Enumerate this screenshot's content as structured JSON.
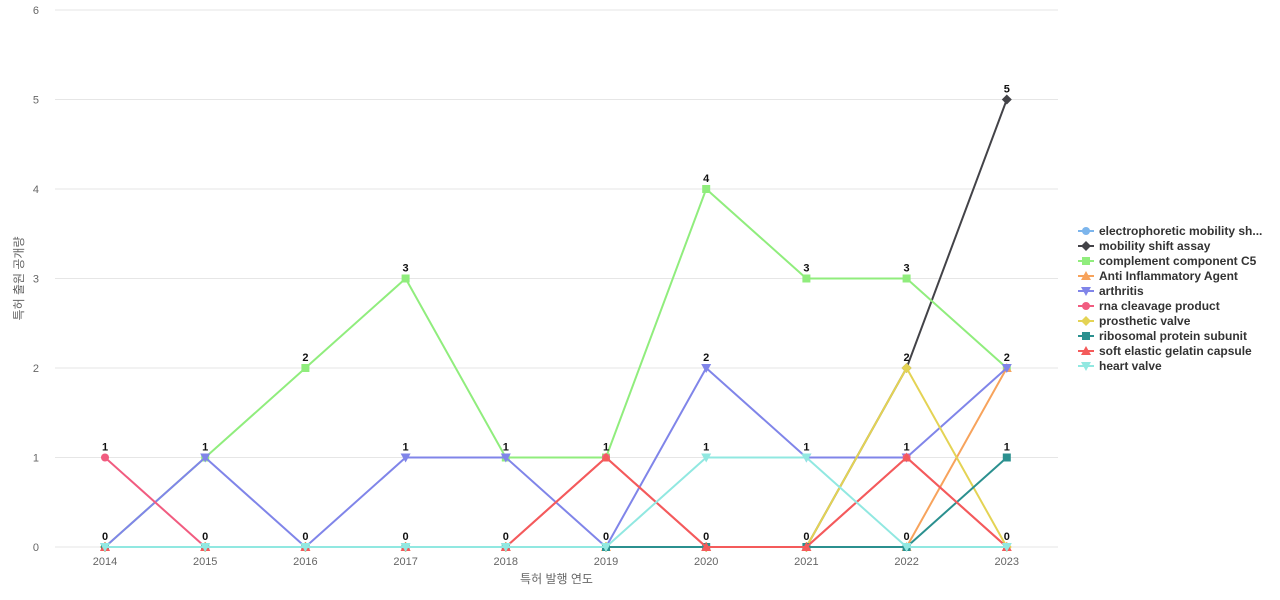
{
  "chart_data": {
    "type": "line",
    "title": "",
    "xlabel": "특허 발행 연도",
    "ylabel": "특허 출원 공개량",
    "categories": [
      "2014",
      "2015",
      "2016",
      "2017",
      "2018",
      "2019",
      "2020",
      "2021",
      "2022",
      "2023"
    ],
    "ylim": [
      0,
      6
    ],
    "yticks": [
      0,
      1,
      2,
      3,
      4,
      5,
      6
    ],
    "grid": true,
    "legend_position": "right",
    "series": [
      {
        "name": "electrophoretic mobility sh...",
        "color": "#7cb5ec",
        "marker": "circle",
        "values": [
          0,
          0,
          0,
          0,
          0,
          0,
          0,
          0,
          0,
          0
        ]
      },
      {
        "name": "mobility shift assay",
        "color": "#434348",
        "marker": "diamond",
        "values": [
          0,
          0,
          0,
          0,
          0,
          0,
          0,
          0,
          2,
          5
        ]
      },
      {
        "name": "complement component C5",
        "color": "#90ed7d",
        "marker": "square",
        "values": [
          0,
          1,
          2,
          3,
          1,
          1,
          4,
          3,
          3,
          2
        ]
      },
      {
        "name": "Anti Inflammatory Agent",
        "color": "#f7a35c",
        "marker": "triangle",
        "values": [
          0,
          0,
          0,
          0,
          0,
          0,
          0,
          0,
          0,
          2
        ]
      },
      {
        "name": "arthritis",
        "color": "#8085e9",
        "marker": "triangle-down",
        "values": [
          0,
          1,
          0,
          1,
          1,
          0,
          2,
          1,
          1,
          2
        ]
      },
      {
        "name": "rna cleavage product",
        "color": "#f15c80",
        "marker": "circle",
        "values": [
          1,
          0,
          0,
          0,
          0,
          1,
          0,
          0,
          1,
          0
        ]
      },
      {
        "name": "prosthetic valve",
        "color": "#e4d354",
        "marker": "diamond",
        "values": [
          0,
          0,
          0,
          0,
          0,
          0,
          0,
          0,
          2,
          0
        ]
      },
      {
        "name": "ribosomal protein subunit",
        "color": "#2b908f",
        "marker": "square",
        "values": [
          0,
          0,
          0,
          0,
          0,
          0,
          0,
          0,
          0,
          1
        ]
      },
      {
        "name": "soft elastic gelatin capsule",
        "color": "#f45b5b",
        "marker": "triangle",
        "values": [
          0,
          0,
          0,
          0,
          0,
          1,
          0,
          0,
          1,
          0
        ]
      },
      {
        "name": "heart valve",
        "color": "#91e8e1",
        "marker": "triangle-down",
        "values": [
          0,
          0,
          0,
          0,
          0,
          0,
          1,
          1,
          0,
          0
        ]
      }
    ],
    "point_labels": [
      {
        "category": "2014",
        "text": "1",
        "value": 1
      },
      {
        "category": "2014",
        "text": "0",
        "value": 0
      },
      {
        "category": "2015",
        "text": "1",
        "value": 1
      },
      {
        "category": "2015",
        "text": "0",
        "value": 0
      },
      {
        "category": "2016",
        "text": "2",
        "value": 2
      },
      {
        "category": "2016",
        "text": "0",
        "value": 0
      },
      {
        "category": "2017",
        "text": "3",
        "value": 3
      },
      {
        "category": "2017",
        "text": "1",
        "value": 1
      },
      {
        "category": "2017",
        "text": "0",
        "value": 0
      },
      {
        "category": "2018",
        "text": "1",
        "value": 1
      },
      {
        "category": "2018",
        "text": "0",
        "value": 0
      },
      {
        "category": "2019",
        "text": "1",
        "value": 1
      },
      {
        "category": "2019",
        "text": "0",
        "value": 0
      },
      {
        "category": "2020",
        "text": "4",
        "value": 4
      },
      {
        "category": "2020",
        "text": "2",
        "value": 2
      },
      {
        "category": "2020",
        "text": "1",
        "value": 1
      },
      {
        "category": "2020",
        "text": "0",
        "value": 0
      },
      {
        "category": "2021",
        "text": "3",
        "value": 3
      },
      {
        "category": "2021",
        "text": "1",
        "value": 1
      },
      {
        "category": "2021",
        "text": "0",
        "value": 0
      },
      {
        "category": "2022",
        "text": "3",
        "value": 3
      },
      {
        "category": "2022",
        "text": "2",
        "value": 2
      },
      {
        "category": "2022",
        "text": "1",
        "value": 1
      },
      {
        "category": "2022",
        "text": "0",
        "value": 0
      },
      {
        "category": "2023",
        "text": "5",
        "value": 5
      },
      {
        "category": "2023",
        "text": "2",
        "value": 2
      },
      {
        "category": "2023",
        "text": "1",
        "value": 1
      },
      {
        "category": "2023",
        "text": "0",
        "value": 0
      }
    ]
  }
}
